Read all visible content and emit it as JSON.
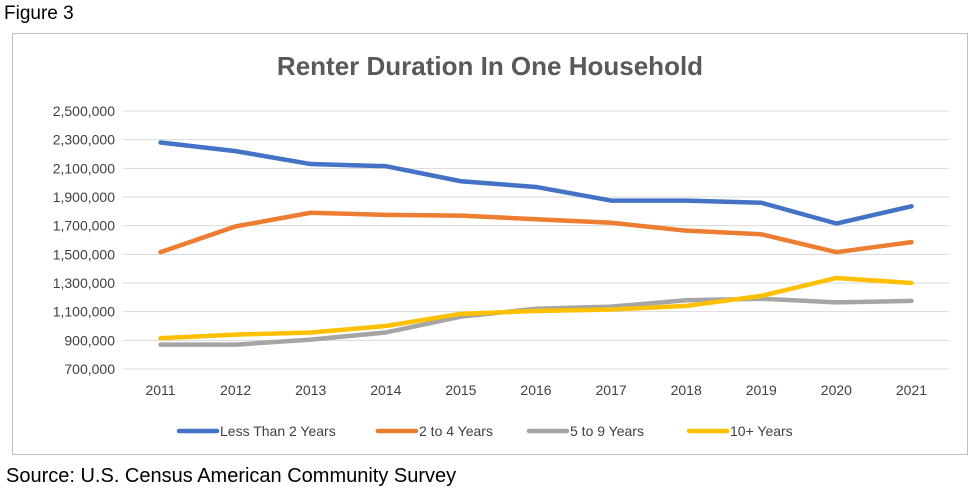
{
  "figure_label": "Figure 3",
  "source_text": "Source: U.S. Census  American Community Survey",
  "chart_data": {
    "type": "line",
    "title": "Renter Duration In One Household",
    "xlabel": "",
    "ylabel": "",
    "categories": [
      "2011",
      "2012",
      "2013",
      "2014",
      "2015",
      "2016",
      "2017",
      "2018",
      "2019",
      "2020",
      "2021"
    ],
    "ylim": [
      700000,
      2500000
    ],
    "yticks": [
      700000,
      900000,
      1100000,
      1300000,
      1500000,
      1700000,
      1900000,
      2100000,
      2300000,
      2500000
    ],
    "ytick_labels": [
      "700,000",
      "900,000",
      "1,100,000",
      "1,300,000",
      "1,500,000",
      "1,700,000",
      "1,900,000",
      "2,100,000",
      "2,300,000",
      "2,500,000"
    ],
    "grid": true,
    "legend_position": "bottom",
    "series": [
      {
        "name": "Less Than 2 Years",
        "color": "#4472c4",
        "values": [
          2280000,
          2220000,
          2130000,
          2115000,
          2010000,
          1970000,
          1875000,
          1875000,
          1860000,
          1715000,
          1835000
        ]
      },
      {
        "name": "2 to 4 Years",
        "color": "#ed7d31",
        "values": [
          1515000,
          1695000,
          1790000,
          1775000,
          1770000,
          1745000,
          1720000,
          1665000,
          1640000,
          1515000,
          1585000
        ]
      },
      {
        "name": "5 to 9 Years",
        "color": "#a5a5a5",
        "values": [
          870000,
          870000,
          905000,
          955000,
          1065000,
          1120000,
          1135000,
          1180000,
          1190000,
          1165000,
          1175000
        ]
      },
      {
        "name": "10+ Years",
        "color": "#ffc000",
        "values": [
          915000,
          940000,
          955000,
          1000000,
          1085000,
          1105000,
          1115000,
          1140000,
          1210000,
          1335000,
          1300000
        ]
      }
    ]
  }
}
